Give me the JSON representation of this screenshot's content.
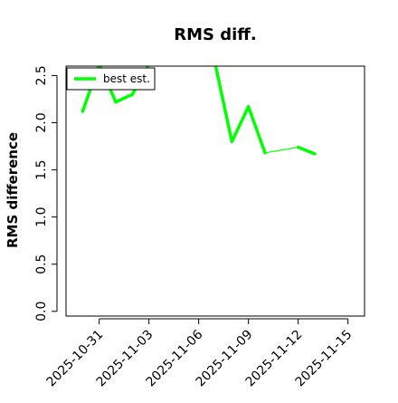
{
  "chart_data": {
    "type": "line",
    "title": "RMS diff.",
    "xlabel": "",
    "ylabel": "RMS difference",
    "ylim": [
      -0.05,
      2.6
    ],
    "xlim": [
      "2025-10-29",
      "2025-11-16"
    ],
    "grid": false,
    "legend": "top-left",
    "y_ticks": [
      0.0,
      0.5,
      1.0,
      1.5,
      2.0,
      2.5
    ],
    "y_tick_labels": [
      "0.0",
      "0.5",
      "1.0",
      "1.5",
      "2.0",
      "2.5"
    ],
    "x_ticks": [
      "2025-10-31",
      "2025-11-03",
      "2025-11-06",
      "2025-11-09",
      "2025-11-12",
      "2025-11-15"
    ],
    "x_tick_labels": [
      "2025-10-31",
      "2025-11-03",
      "2025-11-06",
      "2025-11-09",
      "2025-11-12",
      "2025-11-15"
    ],
    "series": [
      {
        "name": "best est.",
        "color": "#00ff00",
        "x": [
          "2025-10-30",
          "2025-10-31",
          "2025-11-01",
          "2025-11-02",
          "2025-11-03",
          "2025-11-07",
          "2025-11-08",
          "2025-11-09",
          "2025-11-10",
          "2025-11-12",
          "2025-11-13"
        ],
        "y": [
          2.12,
          2.62,
          2.22,
          2.3,
          2.62,
          2.62,
          1.8,
          2.17,
          1.68,
          1.74,
          1.67
        ],
        "widths": [
          3.5,
          3.5,
          3.5,
          3.5,
          3.5,
          3.5,
          3.5,
          3.5,
          1.2,
          3.5
        ]
      }
    ]
  }
}
